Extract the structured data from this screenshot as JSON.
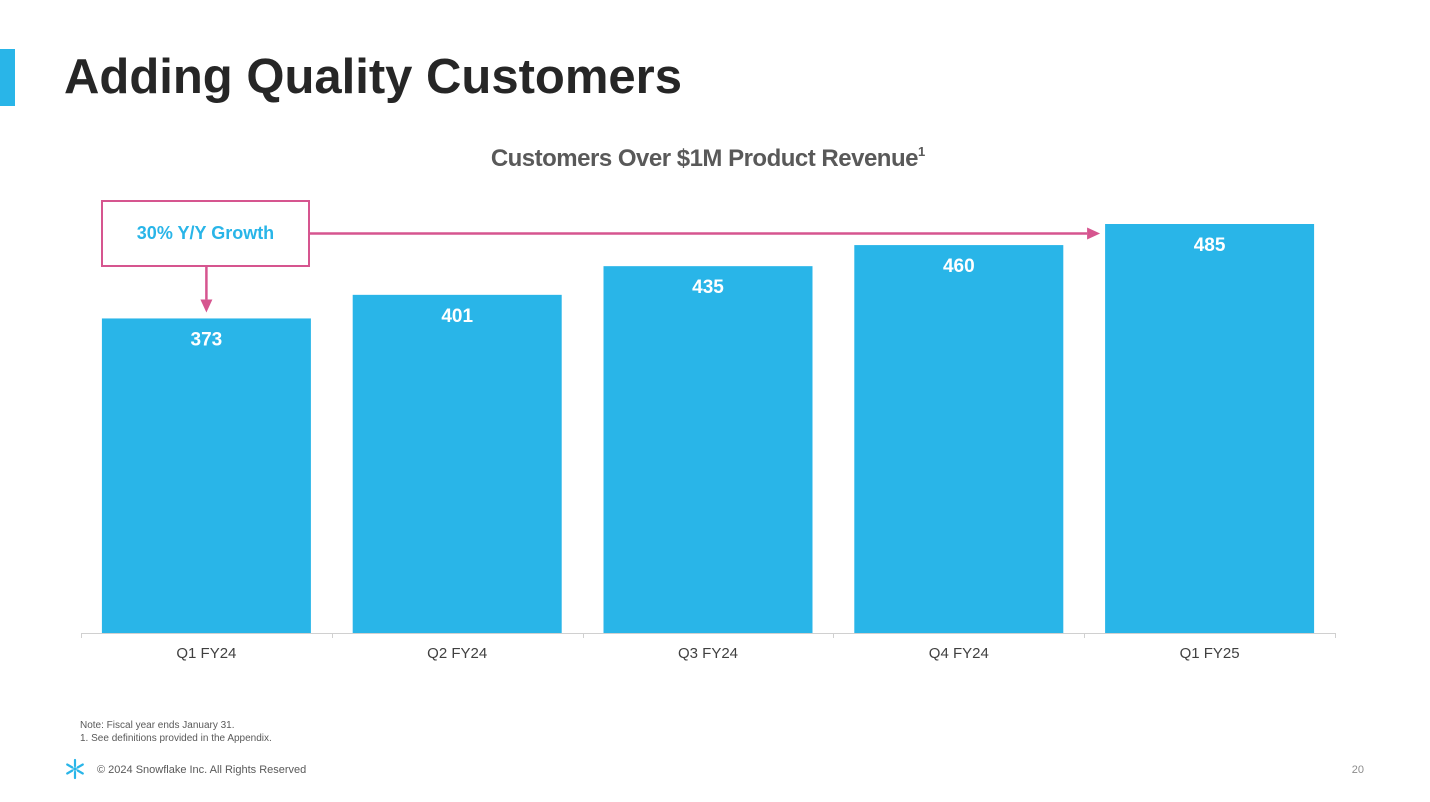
{
  "slide": {
    "title": "Adding Quality Customers",
    "accent_color": "#29B5E8"
  },
  "chart_data": {
    "type": "bar",
    "title": "Customers Over $1M Product Revenue",
    "title_footnote_marker": "1",
    "categories": [
      "Q1 FY24",
      "Q2 FY24",
      "Q3 FY24",
      "Q4 FY24",
      "Q1 FY25"
    ],
    "values": [
      373,
      401,
      435,
      460,
      485
    ],
    "xlabel": "",
    "ylabel": "",
    "ylim": [
      0,
      500
    ],
    "grid": false,
    "bar_color": "#29B5E8",
    "data_labels": true,
    "annotation": {
      "text": "30% Y/Y Growth",
      "from_category": "Q1 FY24",
      "to_category": "Q1 FY25",
      "color": "#D6558F"
    }
  },
  "notes": {
    "line1": "Note: Fiscal year ends January 31.",
    "line2": "1.  See definitions provided in the Appendix."
  },
  "footer": {
    "logo_icon": "snowflake-icon",
    "copyright": "© 2024 Snowflake Inc. All Rights Reserved",
    "page_number": "20"
  }
}
